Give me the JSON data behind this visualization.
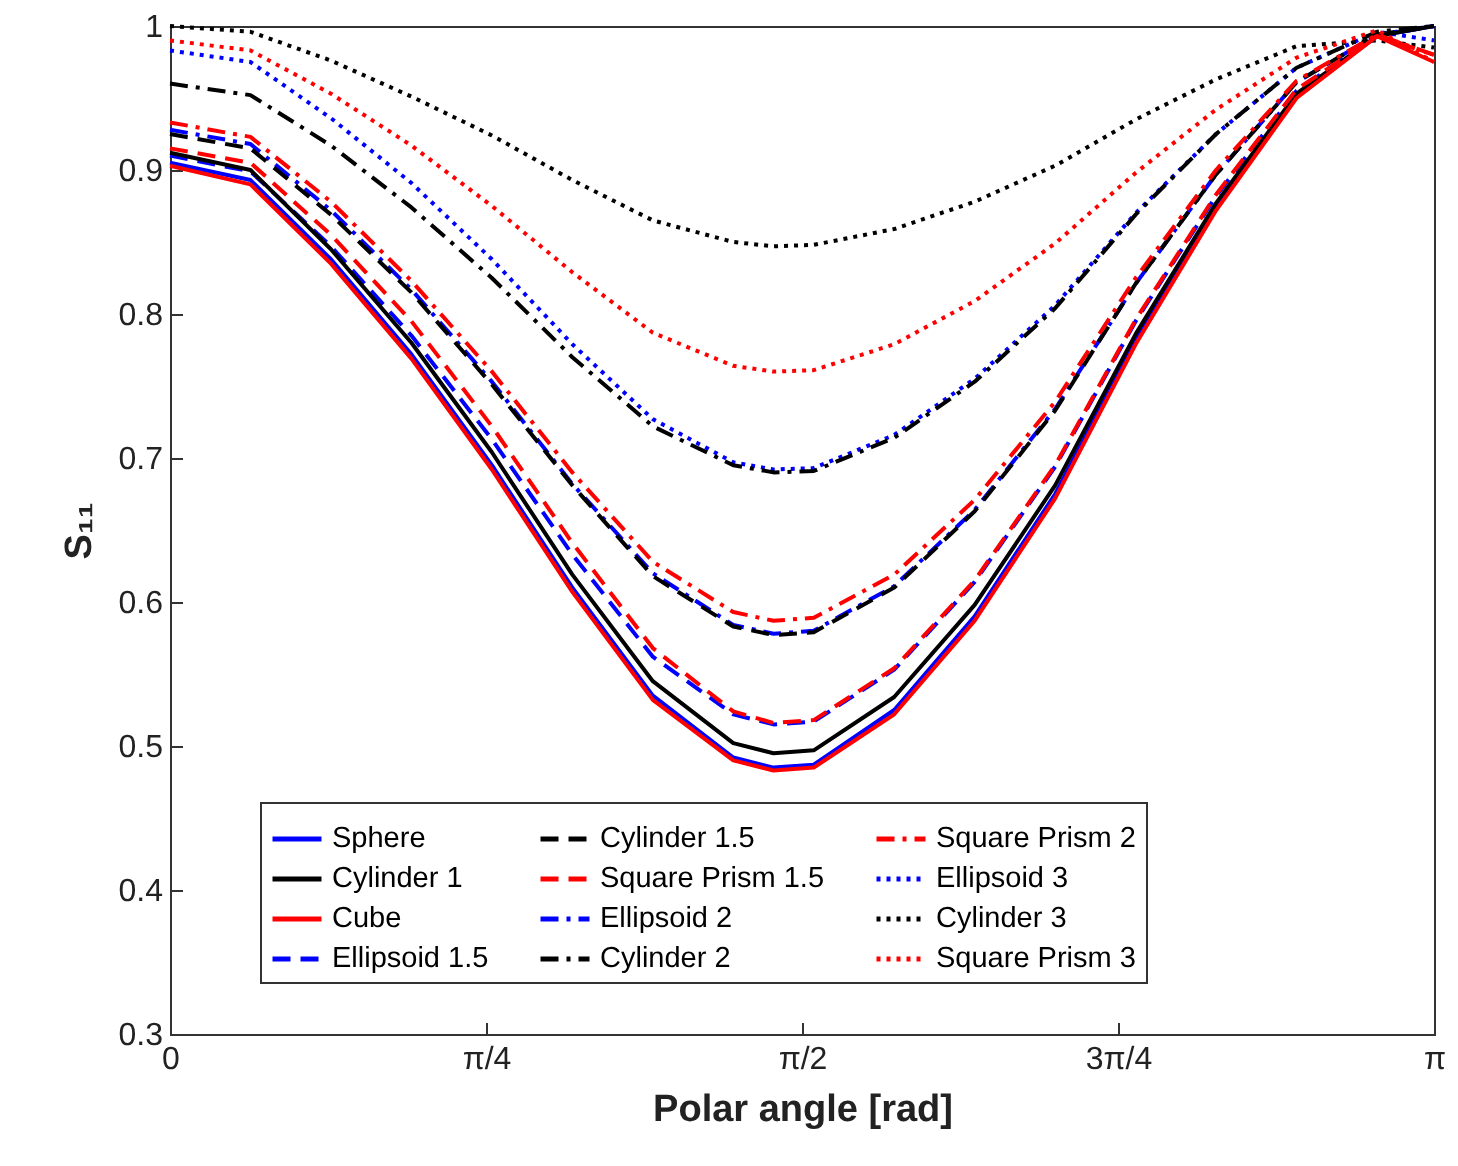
{
  "chart_data": {
    "type": "line",
    "xlabel": "Polar angle [rad]",
    "ylabel": "S₁₁",
    "x": [
      0,
      0.2,
      0.4,
      0.6,
      0.8,
      1.0,
      1.2,
      1.4,
      1.5,
      1.6,
      1.8,
      2.0,
      2.2,
      2.4,
      2.6,
      2.8,
      3.0,
      3.1416
    ],
    "xlim": [
      0,
      3.1416
    ],
    "xticks": [
      0,
      {
        "value": 0.7854,
        "label": "π/4"
      },
      {
        "value": 1.5708,
        "label": "π/2"
      },
      {
        "value": 2.3562,
        "label": "3π/4"
      },
      {
        "value": 3.1416,
        "label": "π"
      }
    ],
    "ylim": [
      0.3,
      1
    ],
    "yticks": [
      0.3,
      0.4,
      0.5,
      0.6,
      0.7,
      0.8,
      0.9,
      1
    ],
    "grid": false,
    "legend": "bottom",
    "marker": "none",
    "series": [
      {
        "name": "Sphere",
        "color": "#0000ff",
        "line_style": "solid",
        "values": [
          0.905,
          0.893,
          0.838,
          0.772,
          0.695,
          0.61,
          0.535,
          0.492,
          0.485,
          0.487,
          0.525,
          0.59,
          0.675,
          0.782,
          0.875,
          0.952,
          0.993,
          1.0
        ]
      },
      {
        "name": "Ellipsoid 1.5",
        "color": "#0000ff",
        "line_style": "dashed",
        "values": [
          0.91,
          0.899,
          0.847,
          0.785,
          0.713,
          0.633,
          0.562,
          0.522,
          0.515,
          0.517,
          0.553,
          0.614,
          0.694,
          0.795,
          0.882,
          0.955,
          0.993,
          1.0
        ]
      },
      {
        "name": "Ellipsoid 2",
        "color": "#0000ff",
        "line_style": "dashdot",
        "values": [
          0.928,
          0.918,
          0.872,
          0.817,
          0.753,
          0.682,
          0.62,
          0.584,
          0.578,
          0.58,
          0.611,
          0.664,
          0.734,
          0.821,
          0.897,
          0.961,
          0.994,
          1.0
        ]
      },
      {
        "name": "Ellipsoid 3",
        "color": "#0000ff",
        "line_style": "dotted",
        "values": [
          0.983,
          0.975,
          0.936,
          0.891,
          0.838,
          0.779,
          0.727,
          0.697,
          0.692,
          0.693,
          0.716,
          0.755,
          0.806,
          0.87,
          0.925,
          0.971,
          0.996,
          0.99
        ]
      },
      {
        "name": "Cylinder 1",
        "color": "#000000",
        "line_style": "solid",
        "values": [
          0.912,
          0.9,
          0.845,
          0.78,
          0.704,
          0.619,
          0.545,
          0.502,
          0.495,
          0.497,
          0.534,
          0.598,
          0.681,
          0.786,
          0.877,
          0.953,
          0.993,
          1.0
        ]
      },
      {
        "name": "Cylinder 1.5",
        "color": "#000000",
        "line_style": "dashed",
        "values": [
          0.925,
          0.915,
          0.869,
          0.815,
          0.751,
          0.681,
          0.618,
          0.583,
          0.577,
          0.579,
          0.61,
          0.663,
          0.733,
          0.821,
          0.897,
          0.961,
          0.994,
          1.0
        ]
      },
      {
        "name": "Cylinder 2",
        "color": "#000000",
        "line_style": "dashdot",
        "values": [
          0.96,
          0.952,
          0.917,
          0.874,
          0.825,
          0.77,
          0.722,
          0.695,
          0.69,
          0.691,
          0.714,
          0.753,
          0.804,
          0.869,
          0.925,
          0.971,
          0.996,
          1.0
        ]
      },
      {
        "name": "Cylinder 3",
        "color": "#000000",
        "line_style": "dotted",
        "values": [
          1.0,
          0.996,
          0.976,
          0.951,
          0.924,
          0.893,
          0.865,
          0.85,
          0.847,
          0.848,
          0.859,
          0.878,
          0.903,
          0.935,
          0.963,
          0.986,
          0.99,
          0.985
        ]
      },
      {
        "name": "Cube",
        "color": "#ff0000",
        "line_style": "solid",
        "values": [
          0.903,
          0.89,
          0.835,
          0.769,
          0.692,
          0.607,
          0.532,
          0.49,
          0.483,
          0.485,
          0.522,
          0.587,
          0.672,
          0.779,
          0.872,
          0.95,
          0.993,
          0.975
        ]
      },
      {
        "name": "Square Prism 1.5",
        "color": "#ff0000",
        "line_style": "dashed",
        "values": [
          0.915,
          0.905,
          0.855,
          0.795,
          0.722,
          0.641,
          0.568,
          0.524,
          0.516,
          0.518,
          0.554,
          0.615,
          0.695,
          0.796,
          0.883,
          0.956,
          0.993,
          0.98
        ]
      },
      {
        "name": "Square Prism 2",
        "color": "#ff0000",
        "line_style": "dashdot",
        "values": [
          0.933,
          0.923,
          0.878,
          0.823,
          0.76,
          0.69,
          0.628,
          0.593,
          0.587,
          0.589,
          0.619,
          0.671,
          0.739,
          0.825,
          0.9,
          0.962,
          0.994,
          0.98
        ]
      },
      {
        "name": "Square Prism 3",
        "color": "#ff0000",
        "line_style": "dotted",
        "values": [
          0.99,
          0.983,
          0.953,
          0.917,
          0.875,
          0.829,
          0.787,
          0.764,
          0.76,
          0.761,
          0.779,
          0.809,
          0.849,
          0.898,
          0.942,
          0.978,
          0.997,
          0.975
        ]
      }
    ]
  }
}
